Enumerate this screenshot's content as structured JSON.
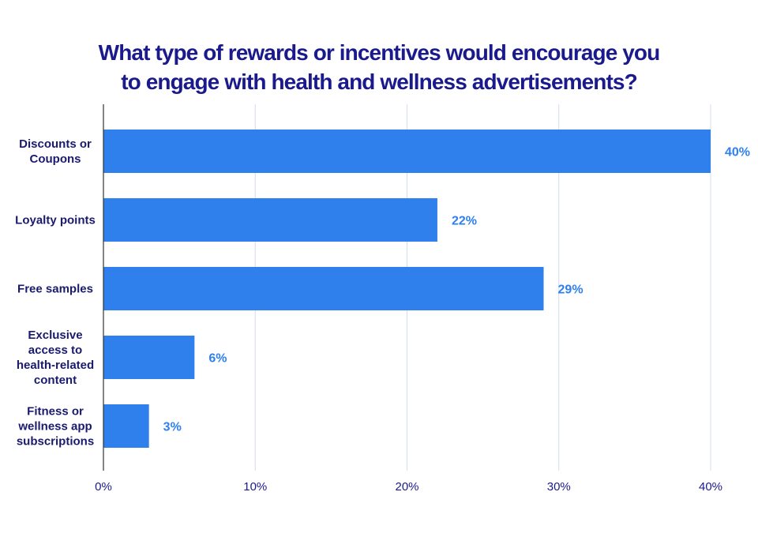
{
  "chart_data": {
    "type": "bar",
    "orientation": "horizontal",
    "title": [
      "What type of rewards or incentives would encourage you",
      "to engage with health and wellness advertisements?"
    ],
    "categories": [
      [
        "Discounts or",
        "Coupons"
      ],
      [
        "Loyalty points"
      ],
      [
        "Free samples"
      ],
      [
        "Exclusive",
        "access to",
        "health-related",
        "content"
      ],
      [
        "Fitness or",
        "wellness app",
        "subscriptions"
      ]
    ],
    "values": [
      40,
      22,
      29,
      6,
      3
    ],
    "value_labels": [
      "40%",
      "22%",
      "29%",
      "6%",
      "3%"
    ],
    "xlim": [
      0,
      40
    ],
    "xticks": [
      0,
      10,
      20,
      30,
      40
    ],
    "xtick_labels": [
      "0%",
      "10%",
      "20%",
      "30%",
      "40%"
    ],
    "grid": "vertical",
    "legend": "none",
    "colors": {
      "bar": "#2f80ed",
      "value_label": "#2f80ed",
      "title": "#1a1a8c",
      "category_label": "#1a1a6e",
      "gridline": "#d3dcf0",
      "axis": "#333333"
    }
  }
}
